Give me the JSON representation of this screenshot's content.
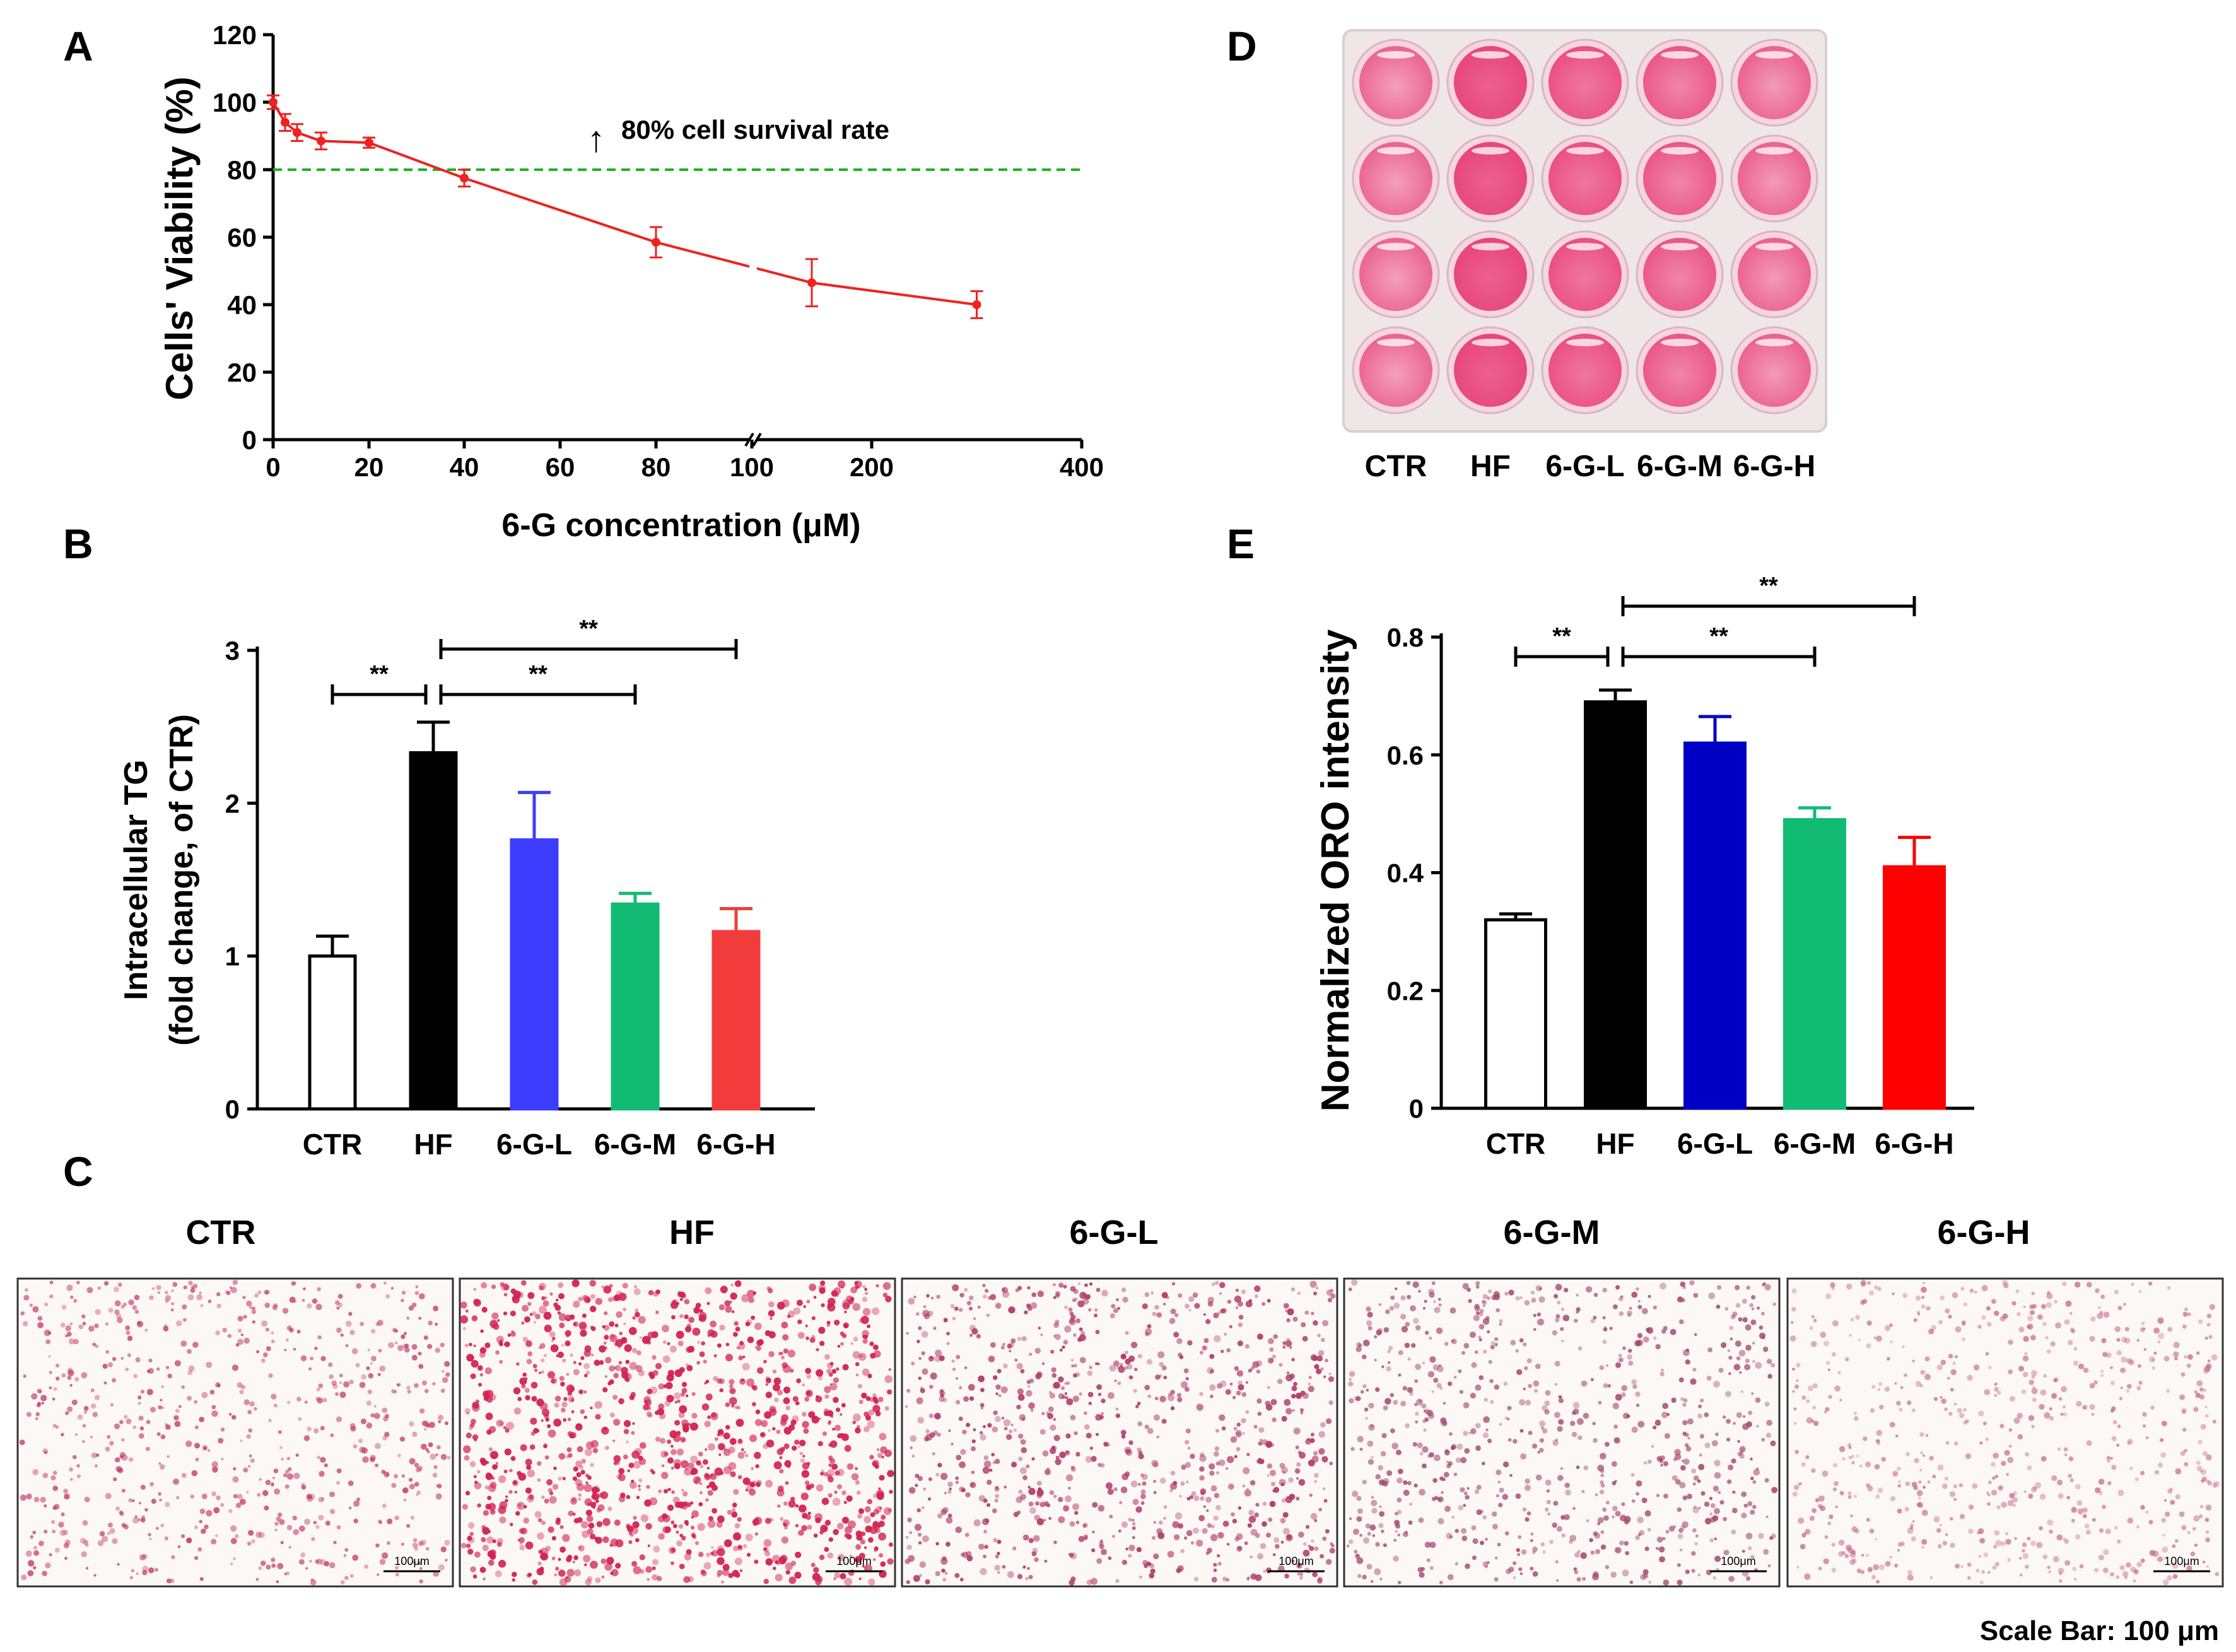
{
  "panel_letters": {
    "A": "A",
    "B": "B",
    "C": "C",
    "D": "D",
    "E": "E"
  },
  "colors": {
    "ctr": "#ffffff",
    "hf": "#000000",
    "b_low": "#3d3dff",
    "b_mid": "#12bb73",
    "b_high": "#f23c3c",
    "e_low": "#0000c4",
    "e_mid": "#12bb73",
    "e_high": "#ff0000",
    "curve": "#ee2222",
    "threshold": "#19b419",
    "plate": "#efe6e8",
    "well": "#e8457c",
    "well_dark": "#c41848",
    "micro_bg": "#fbf8f5",
    "micro_dot": "#c4396a"
  },
  "chart_data": [
    {
      "id": "A",
      "type": "line",
      "title": "",
      "xlabel": "6-G concentration (μM)",
      "ylabel": "Cells' Viability (%)",
      "ylim": [
        0,
        120
      ],
      "yticks": [
        0,
        20,
        40,
        60,
        80,
        100,
        120
      ],
      "xticks": [
        "0",
        "20",
        "40",
        "60",
        "80",
        "100",
        "200",
        "400"
      ],
      "axis_break_at": "100",
      "threshold": {
        "value": 80,
        "label": "80% cell survival rate",
        "arrow": "↑"
      },
      "series": [
        {
          "name": "6-G",
          "x": [
            0,
            2.5,
            5,
            10,
            20,
            40,
            80,
            150,
            300
          ],
          "y": [
            100,
            94,
            91,
            88.5,
            88,
            77.5,
            58.5,
            46.5,
            40
          ],
          "error": [
            2,
            2.5,
            2.5,
            2.5,
            1.5,
            2.5,
            4.5,
            7,
            4
          ]
        }
      ]
    },
    {
      "id": "B",
      "type": "bar",
      "ylabel": [
        "Intracellular TG",
        "(fold change, of CTR)"
      ],
      "ylim": [
        0,
        3
      ],
      "yticks": [
        0,
        1,
        2,
        3
      ],
      "categories": [
        "CTR",
        "HF",
        "6-G-L",
        "6-G-M",
        "6-G-H"
      ],
      "values": [
        1.0,
        2.33,
        1.76,
        1.34,
        1.16
      ],
      "errors": [
        0.13,
        0.2,
        0.31,
        0.07,
        0.15
      ],
      "significance": [
        {
          "from": 0,
          "to": 1,
          "label": "**"
        },
        {
          "from": 1,
          "to": 3,
          "label": "**"
        },
        {
          "from": 1,
          "to": 4,
          "label": "**"
        }
      ]
    },
    {
      "id": "E",
      "type": "bar",
      "ylabel": [
        "Normalized ORO intensity"
      ],
      "ylim": [
        0,
        0.8
      ],
      "yticks": [
        0,
        0.2,
        0.4,
        0.6,
        0.8
      ],
      "categories": [
        "CTR",
        "HF",
        "6-G-L",
        "6-G-M",
        "6-G-H"
      ],
      "values": [
        0.32,
        0.69,
        0.62,
        0.49,
        0.41
      ],
      "errors": [
        0.01,
        0.02,
        0.045,
        0.02,
        0.05
      ],
      "significance": [
        {
          "from": 0,
          "to": 1,
          "label": "**"
        },
        {
          "from": 1,
          "to": 3,
          "label": "**"
        },
        {
          "from": 1,
          "to": 4,
          "label": "**"
        }
      ]
    }
  ],
  "panel_C": {
    "labels": [
      "CTR",
      "HF",
      "6-G-L",
      "6-G-M",
      "6-G-H"
    ],
    "scale_label": "100μm",
    "stain_density": [
      0.35,
      1.0,
      0.6,
      0.45,
      0.3
    ],
    "footer": "Scale Bar: 100 μm"
  },
  "panel_D": {
    "labels": [
      "CTR",
      "HF",
      "6-G-L",
      "6-G-M",
      "6-G-H"
    ],
    "rows": 4,
    "intensity": [
      0.55,
      1.0,
      0.85,
      0.75,
      0.6
    ]
  }
}
